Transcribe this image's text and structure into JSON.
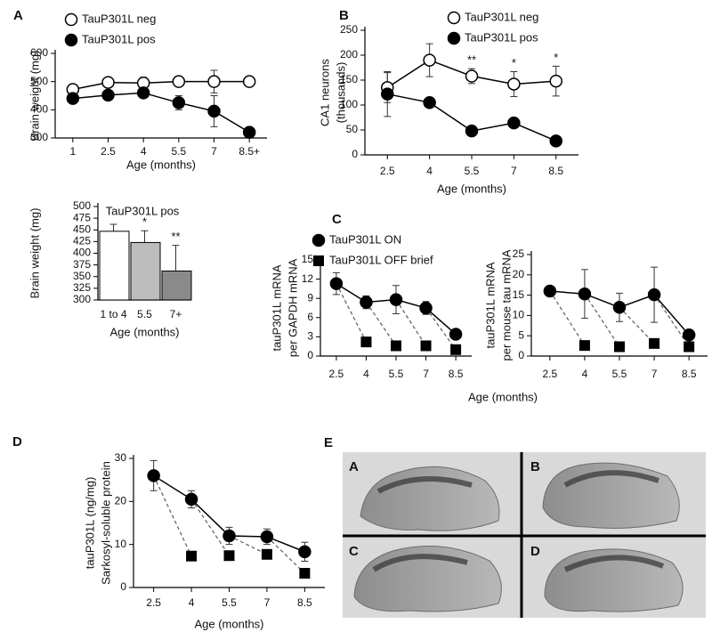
{
  "chart_data": [
    {
      "type": "line",
      "panel_label": "A",
      "ylabel": [
        "Brain weight (mg)"
      ],
      "xlabel": "Age (months)",
      "categories": [
        "1",
        "2.5",
        "4",
        "5.5",
        "7",
        "8.5+"
      ],
      "ylim": [
        300,
        600
      ],
      "yticks": [
        300,
        400,
        500,
        600
      ],
      "series": [
        {
          "name": "TauP301L neg",
          "marker": "open-circle",
          "color": "#000000",
          "values": [
            472,
            497,
            495,
            500,
            500,
            500
          ],
          "errors": [
            8,
            5,
            20,
            12,
            40,
            10
          ]
        },
        {
          "name": "TauP301L pos",
          "marker": "filled-circle",
          "color": "#000000",
          "values": [
            440,
            452,
            460,
            425,
            395,
            320
          ],
          "errors": [
            15,
            15,
            10,
            25,
            55,
            10
          ]
        }
      ]
    },
    {
      "type": "bar",
      "title": "TauP301L pos",
      "ylabel": [
        "Brain weight (mg)"
      ],
      "xlabel": "Age (months)",
      "categories": [
        "1 to 4",
        "5.5",
        "7+"
      ],
      "values": [
        447,
        423,
        362
      ],
      "errors": [
        15,
        25,
        55
      ],
      "colors": [
        "#ffffff",
        "#bdbdbd",
        "#8a8a8a"
      ],
      "ylim": [
        300,
        500
      ],
      "yticks": [
        300,
        325,
        350,
        375,
        400,
        425,
        450,
        475,
        500
      ],
      "annotations": [
        {
          "text": "*",
          "category": "5.5"
        },
        {
          "text": "**",
          "category": "7+"
        }
      ]
    },
    {
      "type": "line",
      "panel_label": "B",
      "ylabel": [
        "CA1 neurons",
        "(thousands)"
      ],
      "xlabel": "Age (months)",
      "x": [
        2.5,
        4,
        5.5,
        7,
        8.5
      ],
      "xlim": [
        1.7,
        9.3
      ],
      "xticks": [
        2.5,
        4,
        5.5,
        7,
        8.5
      ],
      "ylim": [
        0,
        250
      ],
      "yticks": [
        0,
        50,
        100,
        150,
        200,
        250
      ],
      "series": [
        {
          "name": "TauP301L neg",
          "marker": "open-circle",
          "color": "#000000",
          "values": [
            135,
            190,
            158,
            142,
            148
          ],
          "errors": [
            30,
            33,
            15,
            25,
            30
          ]
        },
        {
          "name": "TauP301L pos",
          "marker": "filled-circle",
          "color": "#000000",
          "values": [
            122,
            105,
            48,
            64,
            28
          ],
          "errors": [
            45,
            10,
            3,
            4,
            3
          ]
        }
      ],
      "annotations": [
        {
          "text": "**",
          "x": 5.5
        },
        {
          "text": "*",
          "x": 7
        },
        {
          "text": "*",
          "x": 8.5
        }
      ]
    },
    {
      "type": "line",
      "panel_label": "C",
      "ylabel": [
        "tauP301L mRNA",
        "per GAPDH mRNA"
      ],
      "xlabel": "Age (months)",
      "x": [
        2.5,
        4,
        5.5,
        7,
        8.5
      ],
      "xlim": [
        1.7,
        9.3
      ],
      "xticks": [
        2.5,
        4,
        5.5,
        7,
        8.5
      ],
      "ylim": [
        0,
        15
      ],
      "yticks": [
        0,
        3,
        6,
        9,
        12,
        15
      ],
      "series": [
        {
          "name": "TauP301L ON",
          "marker": "filled-circle",
          "color": "#000000",
          "values": [
            11.3,
            8.4,
            8.8,
            7.5,
            3.4
          ],
          "errors": [
            1.7,
            1.0,
            2.2,
            1.0,
            0.4
          ]
        },
        {
          "name": "TauP301L OFF brief",
          "marker": "square",
          "color": "#000000",
          "dashed_from_previous": true,
          "values": [
            null,
            2.2,
            1.6,
            1.6,
            1.0
          ]
        }
      ]
    },
    {
      "type": "line",
      "ylabel": [
        "tauP301L mRNA",
        "per mouse tau mRNA"
      ],
      "x": [
        2.5,
        4,
        5.5,
        7,
        8.5
      ],
      "xlim": [
        1.7,
        9.3
      ],
      "xticks": [
        2.5,
        4,
        5.5,
        7,
        8.5
      ],
      "ylim": [
        0,
        25
      ],
      "yticks": [
        0,
        5,
        10,
        15,
        20,
        25
      ],
      "series": [
        {
          "marker": "filled-circle",
          "color": "#000000",
          "values": [
            16,
            15.3,
            12,
            15.1,
            5.2
          ],
          "errors": [
            0.5,
            6,
            3.5,
            6.8,
            1
          ]
        },
        {
          "marker": "square",
          "color": "#000000",
          "dashed_from_previous": true,
          "values": [
            null,
            2.6,
            2.3,
            3.1,
            2.3
          ]
        }
      ]
    },
    {
      "type": "line",
      "panel_label": "D",
      "ylabel": [
        "tauP301L (ng/mg)",
        "Sarkosyl-soluble protein"
      ],
      "xlabel": "Age (months)",
      "x": [
        2.5,
        4,
        5.5,
        7,
        8.5
      ],
      "xlim": [
        1.7,
        9.3
      ],
      "xticks": [
        2.5,
        4,
        5.5,
        7,
        8.5
      ],
      "ylim": [
        0,
        30
      ],
      "yticks": [
        0,
        10,
        20,
        30
      ],
      "series": [
        {
          "marker": "filled-circle",
          "color": "#000000",
          "values": [
            26,
            20.5,
            12,
            11.8,
            8.3
          ],
          "errors": [
            3.5,
            2,
            2,
            1.8,
            2.2
          ]
        },
        {
          "marker": "square",
          "color": "#000000",
          "dashed_from_previous": true,
          "values": [
            null,
            7.3,
            7.4,
            7.7,
            3.3
          ]
        }
      ]
    }
  ],
  "image_panel": {
    "panel_label": "E",
    "quadrant_labels": [
      "A",
      "B",
      "C",
      "D"
    ]
  }
}
